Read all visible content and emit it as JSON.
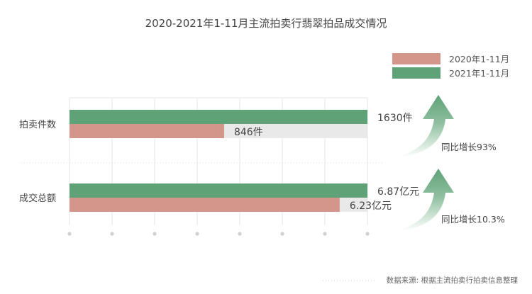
{
  "chart_data": {
    "type": "bar",
    "orientation": "horizontal",
    "title": "2020-2021年1-11月主流拍卖行翡翠拍品成交情况",
    "categories": [
      "拍卖件数",
      "成交总额"
    ],
    "series": [
      {
        "name": "2020年1-11月",
        "color": "#d4968a",
        "values": [
          846,
          6.23
        ],
        "value_labels": [
          "846件",
          "6.23亿元"
        ]
      },
      {
        "name": "2021年1-11月",
        "color": "#5fa278",
        "values": [
          1630,
          6.87
        ],
        "value_labels": [
          "1630件",
          "6.87亿元"
        ]
      }
    ],
    "category_max": [
      1630,
      6.87
    ],
    "legend_position": "top-right",
    "annotations": [
      {
        "category": "拍卖件数",
        "text": "同比增长93%"
      },
      {
        "category": "成交总额",
        "text": "同比增长10.3%"
      }
    ],
    "grid": true,
    "source": "数据来源: 根据主流拍卖行拍卖信息整理"
  }
}
